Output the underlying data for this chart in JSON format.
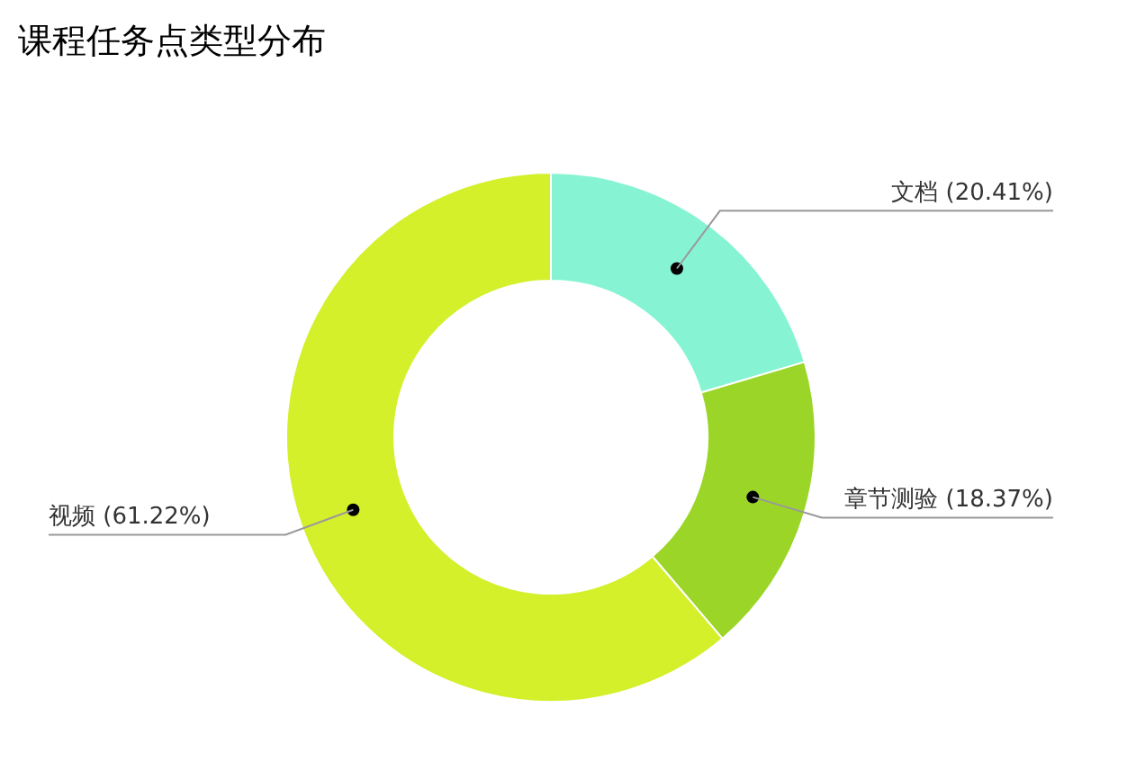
{
  "chart_data": {
    "type": "donut",
    "title": "课程任务点类型分布",
    "categories": [
      "文档",
      "章节测验",
      "视频"
    ],
    "values": [
      20.41,
      18.37,
      61.22
    ],
    "value_labels": [
      "(20.41%)",
      "(18.37%)",
      "(61.22%)"
    ],
    "colors": [
      "#86f4d3",
      "#9bd527",
      "#d3f02b"
    ]
  }
}
